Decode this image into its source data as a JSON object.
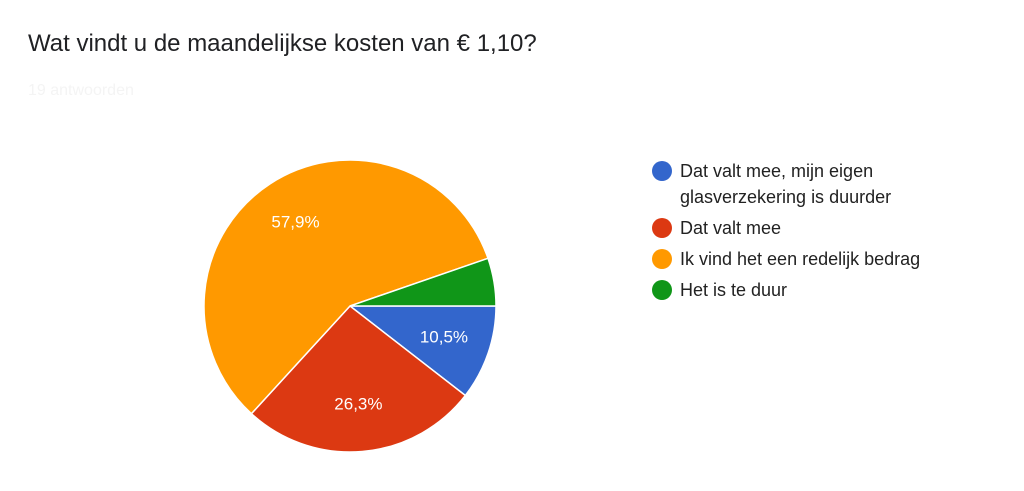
{
  "chart_data": {
    "type": "pie",
    "title": "Wat vindt u de maandelijkse kosten van € 1,10?",
    "subtitle": "19 antwoorden",
    "categories": [
      "Dat valt mee, mijn eigen glasverzekering is duurder",
      "Dat valt mee",
      "Ik vind het een redelijk bedrag",
      "Het is te duur"
    ],
    "values": [
      10.5,
      26.3,
      57.9,
      5.3
    ],
    "value_labels": [
      "10,5%",
      "26,3%",
      "57,9%",
      null
    ],
    "colors": [
      "#3366cc",
      "#dc3912",
      "#ff9900",
      "#109618"
    ],
    "legend": "right"
  }
}
